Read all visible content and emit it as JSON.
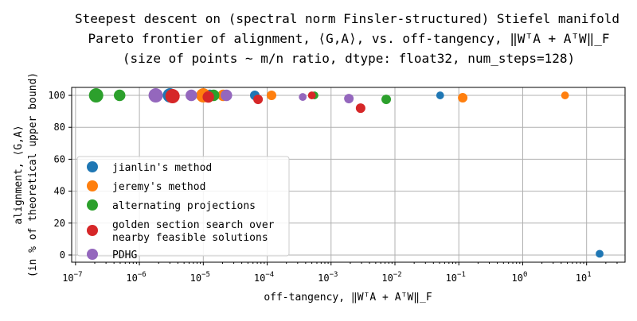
{
  "chart_data": {
    "type": "scatter",
    "title": [
      "Steepest descent on (spectral norm Finsler-structured) Stiefel manifold",
      "Pareto frontier of alignment, ⟨G,A⟩, vs. off-tangency, ‖WᵀA + AᵀW‖_F",
      "(size of points ~ m/n ratio, dtype: float32, num_steps=128)"
    ],
    "xlabel": "off-tangency, ‖WᵀA + AᵀW‖_F",
    "ylabel": [
      "alignment, ⟨G,A⟩",
      "(in % of theoretical upper bound)"
    ],
    "xscale": "log",
    "xlim": [
      8.7e-08,
      40
    ],
    "ylim": [
      -4.5,
      105
    ],
    "grid": true,
    "legend_placement": "lower-left",
    "xticks": [
      {
        "v": 1e-07,
        "b": "10",
        "e": "−7"
      },
      {
        "v": 1e-06,
        "b": "10",
        "e": "−6"
      },
      {
        "v": 1e-05,
        "b": "10",
        "e": "−5"
      },
      {
        "v": 0.0001,
        "b": "10",
        "e": "−4"
      },
      {
        "v": 0.001,
        "b": "10",
        "e": "−3"
      },
      {
        "v": 0.01,
        "b": "10",
        "e": "−2"
      },
      {
        "v": 0.1,
        "b": "10",
        "e": "−1"
      },
      {
        "v": 1,
        "b": "10",
        "e": "0"
      },
      {
        "v": 10,
        "b": "10",
        "e": "1"
      }
    ],
    "yticks": [
      0,
      20,
      40,
      60,
      80,
      100
    ],
    "series": [
      {
        "name": "jianlin's method",
        "color": "#1f77b4",
        "points": [
          {
            "x": 3e-06,
            "y": 100,
            "size": 1.0
          },
          {
            "x": 1.26e-05,
            "y": 100,
            "size": 0.5
          },
          {
            "x": 6.4e-05,
            "y": 100,
            "size": 0.25
          },
          {
            "x": 0.051,
            "y": 100,
            "size": 0.1
          },
          {
            "x": 16,
            "y": 0.8,
            "size": 0.1
          }
        ]
      },
      {
        "name": "jeremy's method",
        "color": "#ff7f0e",
        "points": [
          {
            "x": 1e-05,
            "y": 100,
            "size": 1.0
          },
          {
            "x": 2.05e-05,
            "y": 100,
            "size": 0.5
          },
          {
            "x": 0.000117,
            "y": 100,
            "size": 0.25
          },
          {
            "x": 0.115,
            "y": 98.5,
            "size": 0.25
          },
          {
            "x": 4.6,
            "y": 100,
            "size": 0.1
          }
        ]
      },
      {
        "name": "alternating projections",
        "color": "#2ca02c",
        "points": [
          {
            "x": 2.1e-07,
            "y": 100,
            "size": 1.0
          },
          {
            "x": 4.9e-07,
            "y": 100,
            "size": 0.5
          },
          {
            "x": 1.45e-05,
            "y": 100,
            "size": 0.5
          },
          {
            "x": 0.00055,
            "y": 100,
            "size": 0.1
          },
          {
            "x": 0.0073,
            "y": 97.5,
            "size": 0.25
          }
        ]
      },
      {
        "name": "golden section search over\nnearby feasible solutions",
        "color": "#d62728",
        "points": [
          {
            "x": 3.3e-06,
            "y": 99.5,
            "size": 1.0
          },
          {
            "x": 1.2e-05,
            "y": 99,
            "size": 0.5
          },
          {
            "x": 7.2e-05,
            "y": 97.5,
            "size": 0.25
          },
          {
            "x": 0.0005,
            "y": 100,
            "size": 0.1
          },
          {
            "x": 0.0029,
            "y": 92,
            "size": 0.25
          }
        ]
      },
      {
        "name": "PDHG",
        "color": "#9467bd",
        "points": [
          {
            "x": 1.8e-06,
            "y": 100,
            "size": 1.0
          },
          {
            "x": 6.5e-06,
            "y": 100,
            "size": 0.5
          },
          {
            "x": 2.3e-05,
            "y": 100,
            "size": 0.5
          },
          {
            "x": 0.00036,
            "y": 99,
            "size": 0.1
          },
          {
            "x": 0.0019,
            "y": 98,
            "size": 0.25
          }
        ]
      }
    ]
  }
}
